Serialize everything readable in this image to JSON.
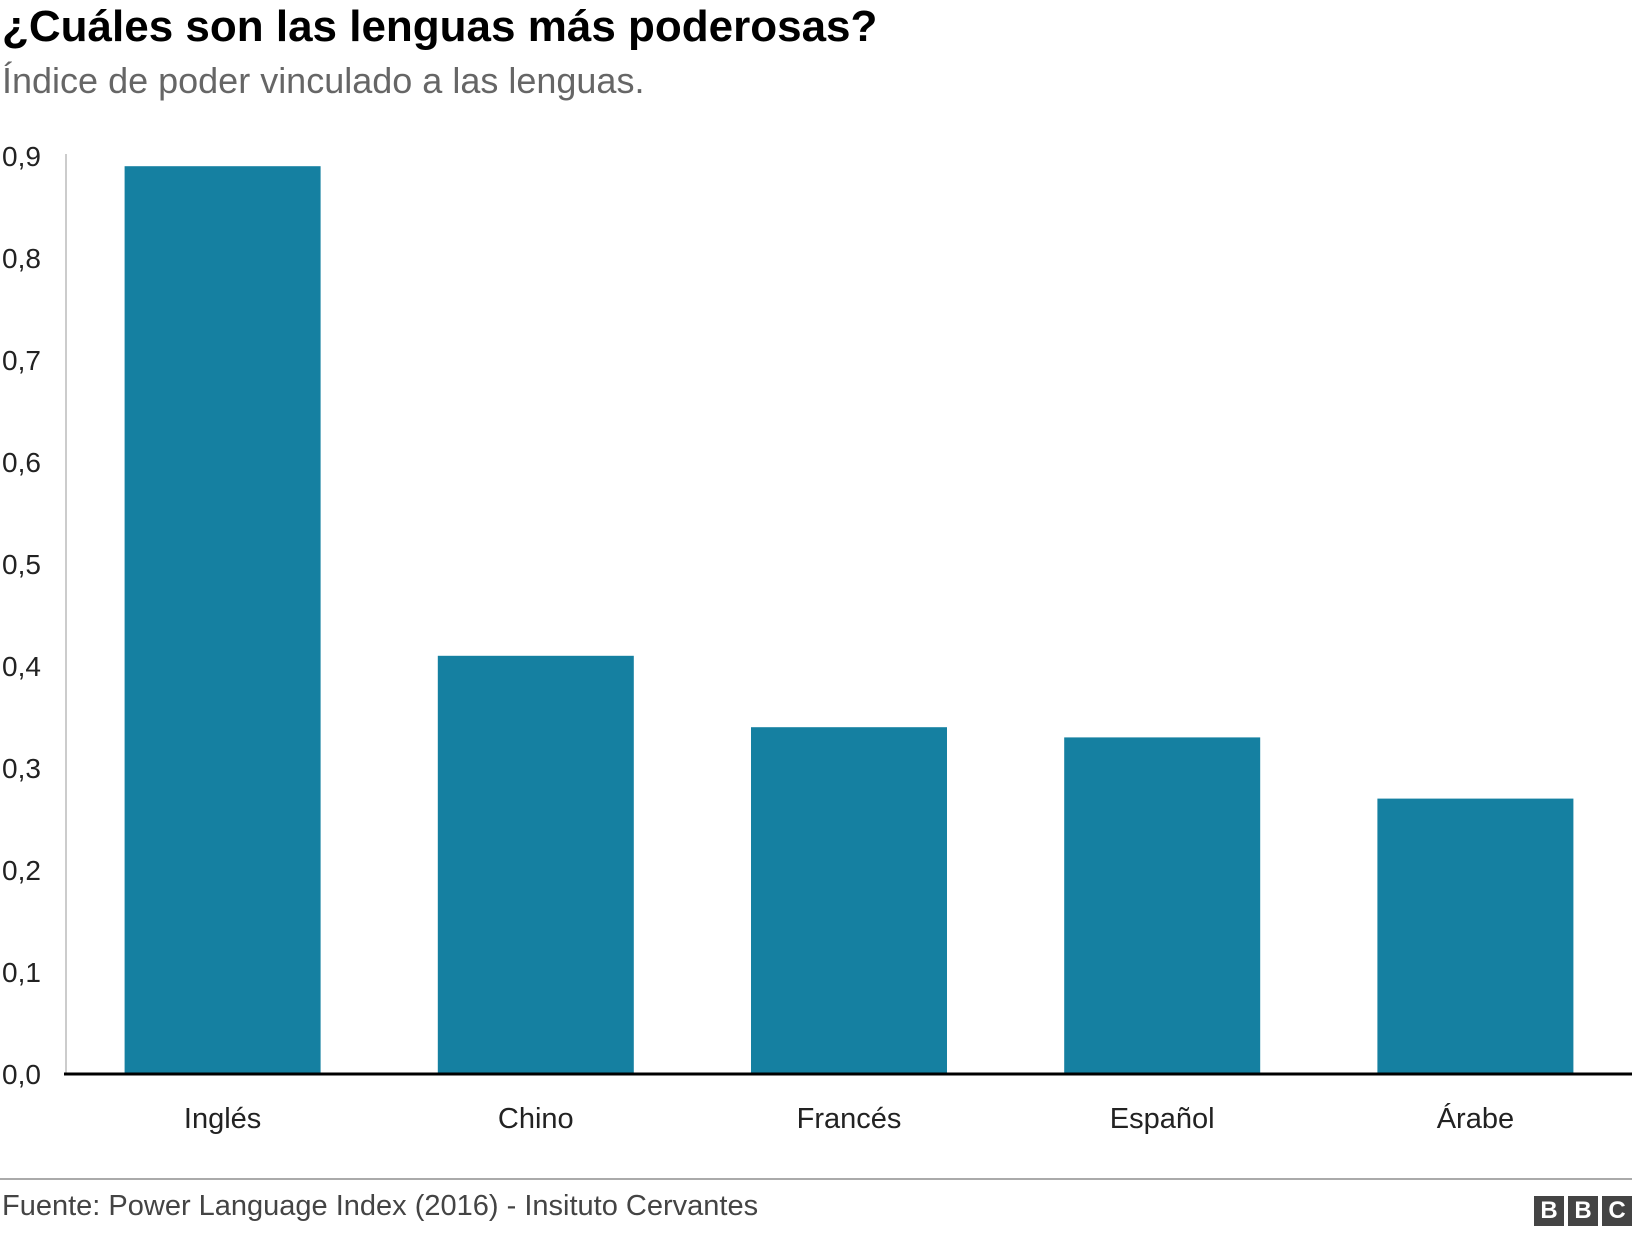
{
  "header": {
    "title": "¿Cuáles son las lenguas más poderosas?",
    "subtitle": "Índice de poder vinculado a las lenguas."
  },
  "footer": {
    "source": "Fuente: Power Language Index (2016) - Insituto Cervantes",
    "logo_letters": [
      "B",
      "B",
      "C"
    ]
  },
  "colors": {
    "bar": "#1580A1",
    "axis": "#000000",
    "y_axis_line": "#cccccc"
  },
  "chart_data": {
    "type": "bar",
    "categories": [
      "Inglés",
      "Chino",
      "Francés",
      "Español",
      "Árabe"
    ],
    "values": [
      0.89,
      0.41,
      0.34,
      0.33,
      0.27
    ],
    "ylim": [
      0,
      0.9
    ],
    "yticks": [
      "0,0",
      "0,1",
      "0,2",
      "0,3",
      "0,4",
      "0,5",
      "0,6",
      "0,7",
      "0,8",
      "0,9"
    ],
    "grid": false,
    "legend": "none"
  }
}
